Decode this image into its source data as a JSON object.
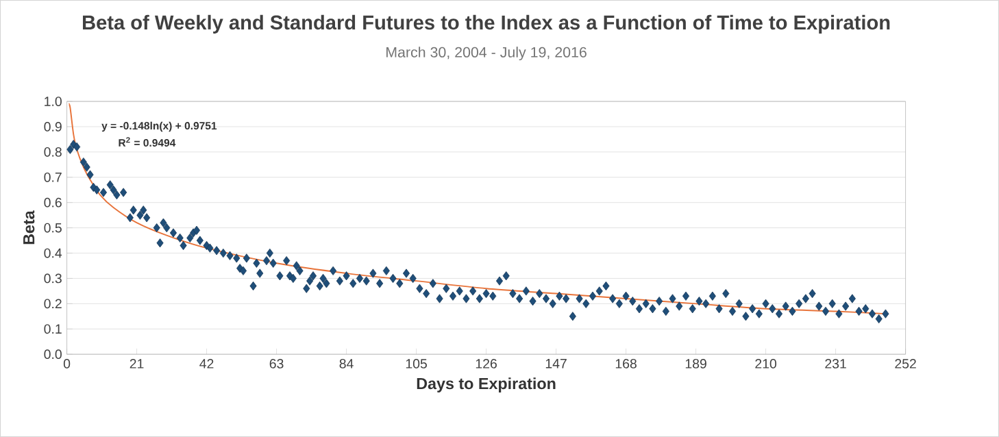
{
  "chart_data": {
    "type": "scatter",
    "title": "Beta of Weekly and Standard Futures to the Index as a Function of Time to Expiration",
    "subtitle": "March 30, 2004 - July 19, 2016",
    "xlabel": "Days to Expiration",
    "ylabel": "Beta",
    "xlim": [
      0,
      252
    ],
    "ylim": [
      0,
      1
    ],
    "xticks": [
      0,
      21,
      42,
      63,
      84,
      105,
      126,
      147,
      168,
      189,
      210,
      231,
      252
    ],
    "yticks": [
      {
        "value": 0,
        "label": "0.0"
      },
      {
        "value": 0.1,
        "label": "0.1"
      },
      {
        "value": 0.2,
        "label": "0.2"
      },
      {
        "value": 0.3,
        "label": "0.3"
      },
      {
        "value": 0.4,
        "label": "0.4"
      },
      {
        "value": 0.5,
        "label": "0.5"
      },
      {
        "value": 0.6,
        "label": "0.6"
      },
      {
        "value": 0.7,
        "label": "0.7"
      },
      {
        "value": 0.8,
        "label": "0.8"
      },
      {
        "value": 0.9,
        "label": "0.9"
      },
      {
        "value": 1,
        "label": "1.0"
      }
    ],
    "grid": "y",
    "marker": "diamond",
    "annotations": [
      "y = -0.148ln(x) + 0.9751",
      "R$^{2}$ = 0.9494"
    ],
    "series": [
      {
        "color": "#1f4e79",
        "x": [
          1,
          2,
          3,
          5,
          6,
          7,
          8,
          9,
          11,
          13,
          14,
          15,
          17,
          19,
          20,
          22,
          23,
          24,
          27,
          28,
          29,
          30,
          32,
          34,
          35,
          37,
          38,
          39,
          40,
          42,
          43,
          45,
          47,
          49,
          51,
          52,
          53,
          54,
          56,
          57,
          58,
          60,
          61,
          62,
          64,
          66,
          67,
          68,
          69,
          70,
          72,
          73,
          74,
          76,
          77,
          78,
          80,
          82,
          84,
          86,
          88,
          90,
          92,
          94,
          96,
          98,
          100,
          102,
          104,
          106,
          108,
          110,
          112,
          114,
          116,
          118,
          120,
          122,
          124,
          126,
          128,
          130,
          132,
          134,
          136,
          138,
          140,
          142,
          144,
          146,
          148,
          150,
          152,
          154,
          156,
          158,
          160,
          162,
          164,
          166,
          168,
          170,
          172,
          174,
          176,
          178,
          180,
          182,
          184,
          186,
          188,
          190,
          192,
          194,
          196,
          198,
          200,
          202,
          204,
          206,
          208,
          210,
          212,
          214,
          216,
          218,
          220,
          222,
          224,
          226,
          228,
          230,
          232,
          234,
          236,
          238,
          240,
          242,
          244,
          246
        ],
        "values": [
          0.81,
          0.83,
          0.82,
          0.76,
          0.74,
          0.71,
          0.66,
          0.65,
          0.64,
          0.67,
          0.65,
          0.63,
          0.64,
          0.54,
          0.57,
          0.55,
          0.57,
          0.54,
          0.5,
          0.44,
          0.52,
          0.5,
          0.48,
          0.46,
          0.43,
          0.46,
          0.48,
          0.49,
          0.45,
          0.43,
          0.42,
          0.41,
          0.4,
          0.39,
          0.38,
          0.34,
          0.33,
          0.38,
          0.27,
          0.36,
          0.32,
          0.37,
          0.4,
          0.36,
          0.31,
          0.37,
          0.31,
          0.3,
          0.35,
          0.33,
          0.26,
          0.29,
          0.31,
          0.27,
          0.3,
          0.28,
          0.33,
          0.29,
          0.31,
          0.28,
          0.3,
          0.29,
          0.32,
          0.28,
          0.33,
          0.3,
          0.28,
          0.32,
          0.3,
          0.26,
          0.24,
          0.28,
          0.22,
          0.26,
          0.23,
          0.25,
          0.22,
          0.25,
          0.22,
          0.24,
          0.23,
          0.29,
          0.31,
          0.24,
          0.22,
          0.25,
          0.21,
          0.24,
          0.22,
          0.2,
          0.23,
          0.22,
          0.15,
          0.22,
          0.2,
          0.23,
          0.25,
          0.27,
          0.22,
          0.2,
          0.23,
          0.21,
          0.18,
          0.2,
          0.18,
          0.21,
          0.17,
          0.22,
          0.19,
          0.23,
          0.18,
          0.21,
          0.2,
          0.23,
          0.18,
          0.24,
          0.17,
          0.2,
          0.15,
          0.18,
          0.16,
          0.2,
          0.18,
          0.16,
          0.19,
          0.17,
          0.2,
          0.22,
          0.24,
          0.19,
          0.17,
          0.2,
          0.16,
          0.19,
          0.22,
          0.17,
          0.18,
          0.16,
          0.14,
          0.16
        ]
      },
      {
        "type": "line",
        "marker": "none",
        "color": "#e8743b",
        "x": [
          0.6,
          1,
          2,
          3,
          5,
          7,
          10,
          14,
          21,
          30,
          42,
          63,
          84,
          105,
          126,
          147,
          168,
          189,
          210,
          231,
          246
        ],
        "values": [
          0.99,
          0.975,
          0.87,
          0.81,
          0.74,
          0.69,
          0.63,
          0.58,
          0.52,
          0.47,
          0.42,
          0.36,
          0.32,
          0.29,
          0.26,
          0.24,
          0.22,
          0.2,
          0.18,
          0.17,
          0.16
        ]
      }
    ]
  }
}
